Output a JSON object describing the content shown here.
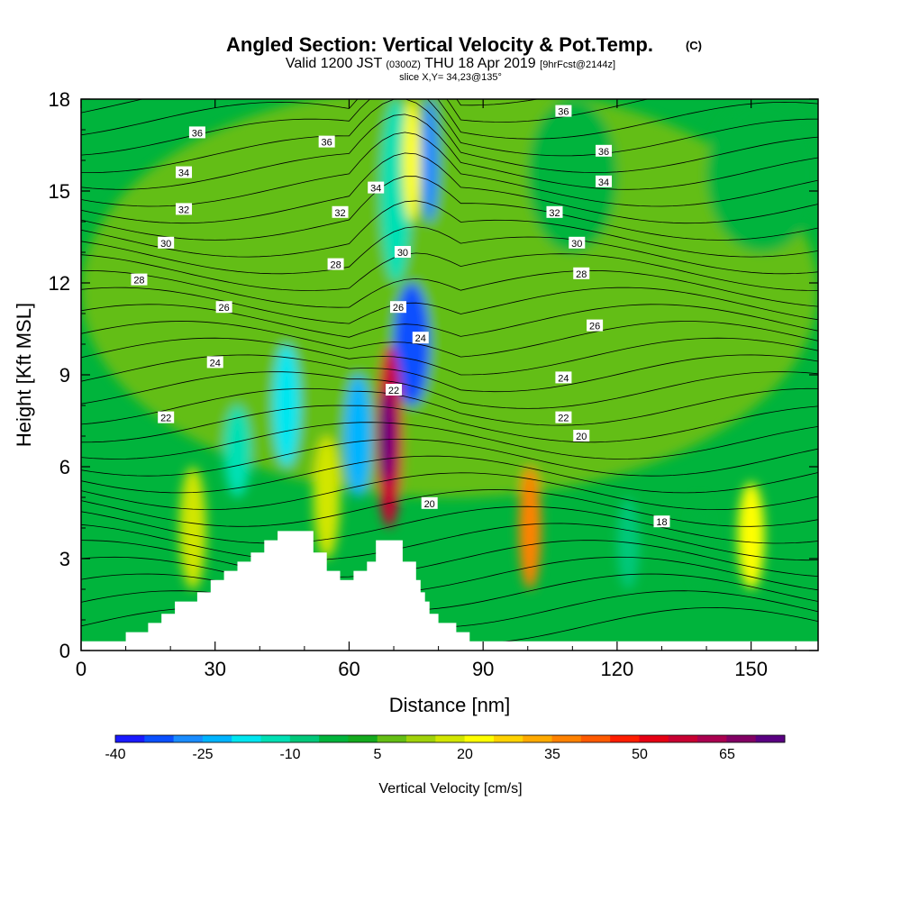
{
  "chart_data": {
    "type": "heatmap",
    "title": "Angled Section: Vertical Velocity & Pot.Temp.",
    "title_unit": "(C)",
    "subtitle_parts": [
      "Valid 1200 JST",
      "(0300Z)",
      "THU 18 Apr 2019",
      "[9hrFcst@2144z]"
    ],
    "slice_label": "slice X,Y= 34,23@135°",
    "xlabel": "Distance [nm]",
    "ylabel": "Height [Kft MSL]",
    "xlim": [
      0,
      165
    ],
    "ylim": [
      0,
      18
    ],
    "x_ticks": [
      "0",
      "30",
      "60",
      "90",
      "120",
      "150"
    ],
    "y_ticks": [
      "0",
      "3",
      "6",
      "9",
      "12",
      "15",
      "18"
    ],
    "colorbar": {
      "title": "Vertical Velocity [cm/s]",
      "tick_labels": [
        "-40",
        "-25",
        "-10",
        "5",
        "20",
        "35",
        "50",
        "65"
      ],
      "colors": [
        "#1a1aff",
        "#0a50ff",
        "#1a8cff",
        "#00b4ff",
        "#00e6f0",
        "#00e0b4",
        "#00c87a",
        "#00b43c",
        "#14aa1e",
        "#64be14",
        "#a0d20a",
        "#d2e600",
        "#ffff00",
        "#ffd200",
        "#ffaa00",
        "#ff8200",
        "#ff5a00",
        "#ff1e00",
        "#e60014",
        "#c80032",
        "#aa0050",
        "#820064",
        "#5a0082"
      ]
    },
    "theta_contour_labels": [
      "18",
      "20",
      "20",
      "22",
      "22",
      "22",
      "24",
      "24",
      "24",
      "26",
      "26",
      "26",
      "28",
      "28",
      "28",
      "30",
      "30",
      "30",
      "32",
      "32",
      "32",
      "34",
      "34",
      "34",
      "36",
      "36",
      "36",
      "36"
    ],
    "vertical_velocity_cells": [
      {
        "x": 0,
        "y": 5,
        "w": 165,
        "h": 13.5,
        "value": 0
      },
      {
        "x": 140,
        "y": 13,
        "w": 25,
        "h": 5,
        "value": -8
      },
      {
        "x": 100,
        "y": 13,
        "w": 20,
        "h": 5,
        "value": -6
      },
      {
        "x": 32,
        "y": 5,
        "w": 6,
        "h": 3,
        "value": -18
      },
      {
        "x": 43,
        "y": 6,
        "w": 6,
        "h": 4,
        "value": -22
      },
      {
        "x": 59,
        "y": 5,
        "w": 6,
        "h": 4,
        "value": -28
      },
      {
        "x": 70,
        "y": 8,
        "w": 8,
        "h": 4,
        "value": -38
      },
      {
        "x": 67,
        "y": 12,
        "w": 7,
        "h": 6,
        "value": -20
      },
      {
        "x": 76,
        "y": 14,
        "w": 4,
        "h": 4,
        "value": -35
      },
      {
        "x": 72,
        "y": 14,
        "w": 4,
        "h": 4,
        "value": 18
      },
      {
        "x": 66,
        "y": 4,
        "w": 6,
        "h": 6,
        "value": 50
      },
      {
        "x": 67,
        "y": 5.5,
        "w": 3,
        "h": 3,
        "value": 70
      },
      {
        "x": 98,
        "y": 2,
        "w": 5,
        "h": 4,
        "value": 30
      },
      {
        "x": 147,
        "y": 2,
        "w": 6,
        "h": 3.5,
        "value": 15
      },
      {
        "x": 120,
        "y": 2,
        "w": 5,
        "h": 3,
        "value": -12
      },
      {
        "x": 136,
        "y": 2,
        "w": 5,
        "h": 3,
        "value": -10
      },
      {
        "x": 52,
        "y": 3,
        "w": 6,
        "h": 4,
        "value": 12
      },
      {
        "x": 22,
        "y": 2,
        "w": 6,
        "h": 4,
        "value": 10
      }
    ]
  }
}
